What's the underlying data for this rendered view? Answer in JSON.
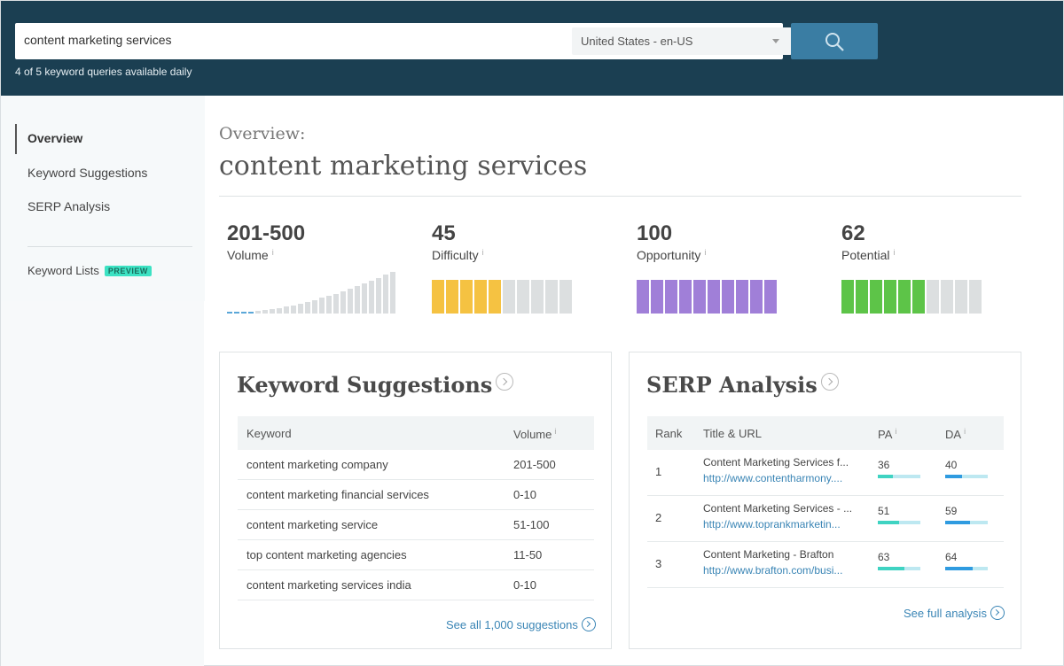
{
  "search": {
    "query": "content marketing services",
    "locale": "United States - en-US",
    "quota_text": "4 of 5 keyword queries available daily"
  },
  "sidebar": {
    "items": [
      {
        "label": "Overview",
        "active": true
      },
      {
        "label": "Keyword Suggestions"
      },
      {
        "label": "SERP Analysis"
      }
    ],
    "lists_label": "Keyword Lists",
    "preview_badge": "PREVIEW"
  },
  "overview": {
    "label": "Overview:",
    "keyword": "content marketing services"
  },
  "metrics": {
    "volume": {
      "value": "201-500",
      "label": "Volume",
      "info": "i"
    },
    "difficulty": {
      "value": "45",
      "label": "Difficulty",
      "info": "i",
      "filled": 5,
      "total": 10,
      "color": "#f5c242"
    },
    "opportunity": {
      "value": "100",
      "label": "Opportunity",
      "info": "i",
      "filled": 10,
      "total": 10,
      "color": "#a07fd8"
    },
    "potential": {
      "value": "62",
      "label": "Potential",
      "info": "i",
      "filled": 6,
      "total": 10,
      "color": "#5dc448"
    }
  },
  "keyword_suggestions": {
    "title": "Keyword Suggestions",
    "headers": {
      "keyword": "Keyword",
      "volume": "Volume",
      "volume_info": "i"
    },
    "rows": [
      {
        "keyword": "content marketing company",
        "volume": "201-500"
      },
      {
        "keyword": "content marketing financial services",
        "volume": "0-10"
      },
      {
        "keyword": "content marketing service",
        "volume": "51-100"
      },
      {
        "keyword": "top content marketing agencies",
        "volume": "11-50"
      },
      {
        "keyword": "content marketing services india",
        "volume": "0-10"
      }
    ],
    "footer_link": "See all 1,000 suggestions"
  },
  "serp_analysis": {
    "title": "SERP Analysis",
    "headers": {
      "rank": "Rank",
      "title_url": "Title & URL",
      "pa": "PA",
      "da": "DA",
      "info": "i"
    },
    "rows": [
      {
        "rank": "1",
        "title": "Content Marketing Services f...",
        "url": "http://www.contentharmony....",
        "pa": "36",
        "da": "40",
        "pa_frac": 0.36,
        "da_frac": 0.4
      },
      {
        "rank": "2",
        "title": "Content Marketing Services - ...",
        "url": "http://www.toprankmarketin...",
        "pa": "51",
        "da": "59",
        "pa_frac": 0.51,
        "da_frac": 0.59
      },
      {
        "rank": "3",
        "title": "Content Marketing - Brafton",
        "url": "http://www.brafton.com/busi...",
        "pa": "63",
        "da": "64",
        "pa_frac": 0.63,
        "da_frac": 0.64
      }
    ],
    "footer_link": "See full analysis"
  },
  "colors": {
    "header_bg": "#1b3f52",
    "search_button": "#3a7da3",
    "link": "#3a85b5",
    "pa_bar": "#3fd3c2",
    "da_bar": "#2f9be0"
  }
}
